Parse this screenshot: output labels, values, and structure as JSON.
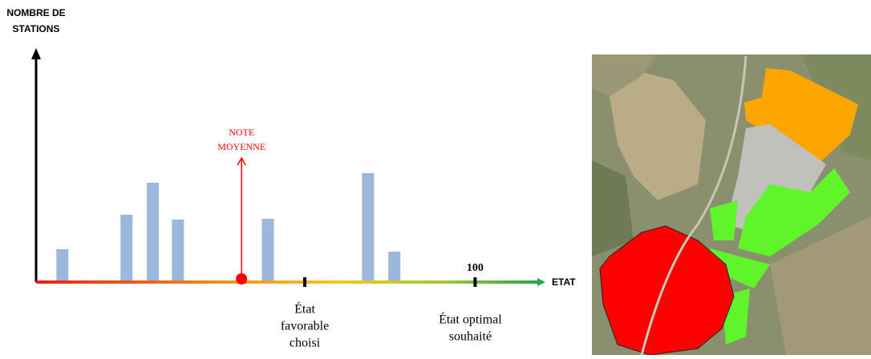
{
  "chart_data": {
    "type": "bar",
    "y_label": [
      "NOMBRE DE",
      "STATIONS"
    ],
    "x_label": "ETAT",
    "x": [
      6,
      20.6,
      26.6,
      32.3,
      52.8,
      75.6,
      81.6
    ],
    "values": [
      41,
      84,
      124,
      78,
      79,
      136,
      38
    ],
    "color": "#9bb7db",
    "xlim": [
      0,
      116
    ],
    "ylim": [
      0,
      290
    ],
    "xticks": [
      100
    ],
    "mean": {
      "x": 46.8,
      "label": [
        "NOTE",
        "MOYENNE"
      ],
      "color": "#ff0000"
    },
    "favorable": {
      "x": 61.2,
      "label": [
        "État",
        "favorable",
        "choisi"
      ]
    },
    "optimal": {
      "x": 100,
      "label": [
        "État  optimal",
        "souhaité"
      ]
    }
  }
}
